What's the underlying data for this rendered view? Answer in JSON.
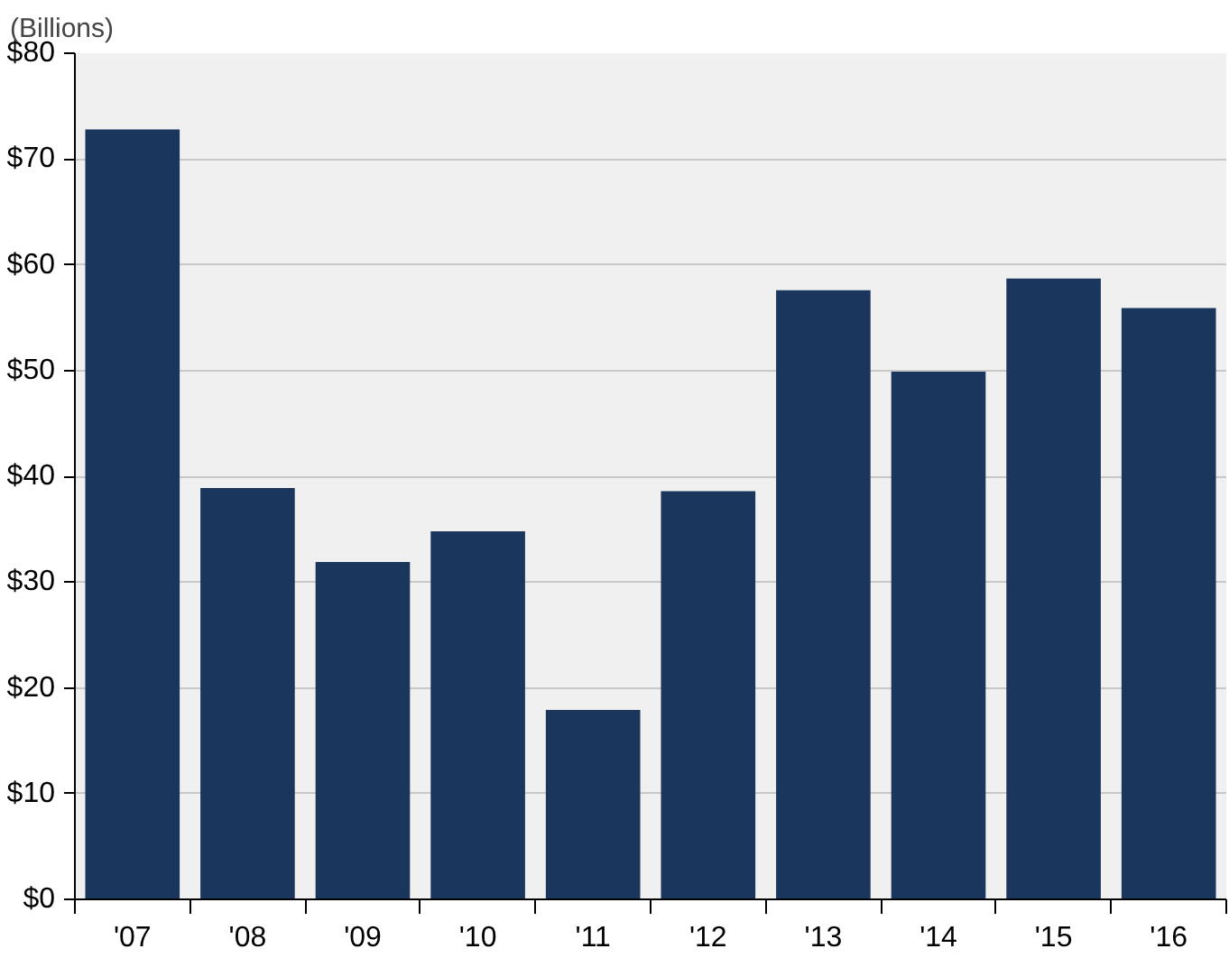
{
  "chart_data": {
    "type": "bar",
    "ylabel": "(Billions)",
    "categories": [
      "'07",
      "'08",
      "'09",
      "'10",
      "'11",
      "'12",
      "'13",
      "'14",
      "'15",
      "'16"
    ],
    "values": [
      72.8,
      38.9,
      31.9,
      34.8,
      17.9,
      38.6,
      57.6,
      49.9,
      58.7,
      55.9
    ],
    "color": "#1b365d",
    "ylim": [
      0,
      80
    ],
    "yticks": [
      {
        "value": 0,
        "label": "$0"
      },
      {
        "value": 10,
        "label": "$10"
      },
      {
        "value": 20,
        "label": "$20"
      },
      {
        "value": 30,
        "label": "$30"
      },
      {
        "value": 40,
        "label": "$40"
      },
      {
        "value": 50,
        "label": "$50"
      },
      {
        "value": 60,
        "label": "$60"
      },
      {
        "value": 70,
        "label": "$70"
      },
      {
        "value": 80,
        "label": "$80"
      }
    ],
    "grid": "y"
  }
}
